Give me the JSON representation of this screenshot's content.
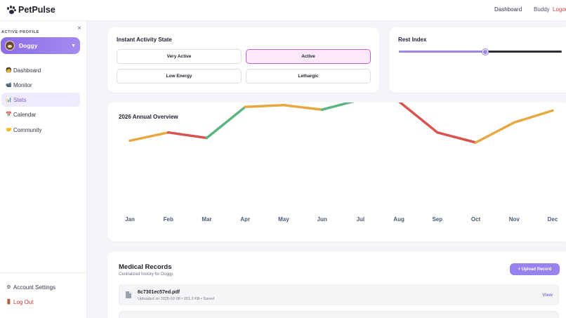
{
  "topbar": {
    "brand": "PetPulse",
    "nav_dashboard": "Dashboard",
    "username": "Buddy",
    "logout": "Logout"
  },
  "sidebar": {
    "close_symbol": "×",
    "profile_label": "ACTIVE PROFILE",
    "profile_name": "Doggy",
    "caret": "▼",
    "items": [
      {
        "label": "Dashboard",
        "icon": "🧑"
      },
      {
        "label": "Monitor",
        "icon": "📹"
      },
      {
        "label": "Stats",
        "icon": "📊"
      },
      {
        "label": "Calendar",
        "icon": "📅"
      },
      {
        "label": "Community",
        "icon": "🤝"
      }
    ],
    "settings_label": "Account Settings",
    "settings_icon": "⚙",
    "logout_label": "Log Out",
    "logout_icon": "🚪"
  },
  "activity": {
    "title": "Instant Activity State",
    "options": [
      "Very Active",
      "Active",
      "Low Energy",
      "Lethargic"
    ],
    "selected": "Active"
  },
  "rest_index": {
    "title": "Rest Index",
    "value_fraction": 0.53
  },
  "overview": {
    "title": "2026 Annual Overview"
  },
  "chart_data": {
    "type": "line",
    "title": "2026 Annual Overview",
    "categories": [
      "Jan",
      "Feb",
      "Mar",
      "Apr",
      "May",
      "Jun",
      "Jul",
      "Aug",
      "Sep",
      "Oct",
      "Nov",
      "Dec"
    ],
    "values": [
      42,
      51,
      45,
      79,
      81,
      76,
      87,
      85,
      51,
      40,
      62,
      75
    ],
    "ylim": [
      0,
      100
    ],
    "grid": false,
    "segment_colors": {
      "high": "#5ab583",
      "mid": "#e6a843",
      "low": "#d9534f"
    }
  },
  "records": {
    "title": "Medical Records",
    "subtitle": "Centralized history for Doggy",
    "upload_label": "+ Upload Record",
    "items": [
      {
        "name": "6c7301ec57ed.pdf",
        "meta": "Uploaded on 2026-02-08 • 201.3 KB • Saved",
        "action": "View"
      }
    ]
  }
}
